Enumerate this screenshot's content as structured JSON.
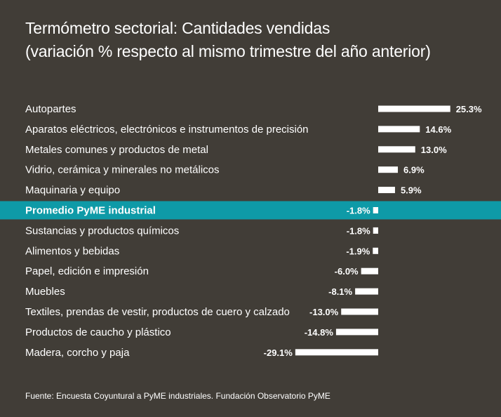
{
  "header": {
    "title_line1": "Termómetro sectorial: Cantidades vendidas",
    "title_line2": "(variación % respecto al mismo trimestre del año anterior)"
  },
  "colors": {
    "background": "#413d37",
    "highlight_row": "#0e9aa7",
    "bars": "#ffffff",
    "text": "#ffffff"
  },
  "chart_data": {
    "type": "bar",
    "orientation": "horizontal",
    "title": "Termómetro sectorial: Cantidades vendidas (variación % respecto al mismo trimestre del año anterior)",
    "categories": [
      "Autopartes",
      "Aparatos eléctricos, electrónicos e instrumentos de precisión",
      "Metales comunes y productos de metal",
      "Vidrio, cerámica y minerales no metálicos",
      "Maquinaria y equipo",
      "Promedio PyME industrial",
      "Sustancias y productos químicos",
      "Alimentos y bebidas",
      "Papel, edición e impresión",
      "Muebles",
      "Textiles, prendas de vestir, productos de cuero y calzado",
      "Productos de caucho y plástico",
      "Madera, corcho y paja"
    ],
    "values": [
      25.3,
      14.6,
      13.0,
      6.9,
      5.9,
      -1.8,
      -1.8,
      -1.9,
      -6.0,
      -8.1,
      -13.0,
      -14.8,
      -29.1
    ],
    "value_labels": [
      "25.3%",
      "14.6%",
      "13.0%",
      "6.9%",
      "5.9%",
      "-1.8%",
      "-1.8%",
      "-1.9%",
      "-6.0%",
      "-8.1%",
      "-13.0%",
      "-14.8%",
      "-29.1%"
    ],
    "highlight_category": "Promedio PyME industrial",
    "xlabel": "",
    "ylabel": "",
    "grid": false,
    "legend": "none"
  },
  "footer": {
    "source": "Fuente: Encuesta Coyuntural a PyME industriales. Fundación Observatorio PyME"
  }
}
